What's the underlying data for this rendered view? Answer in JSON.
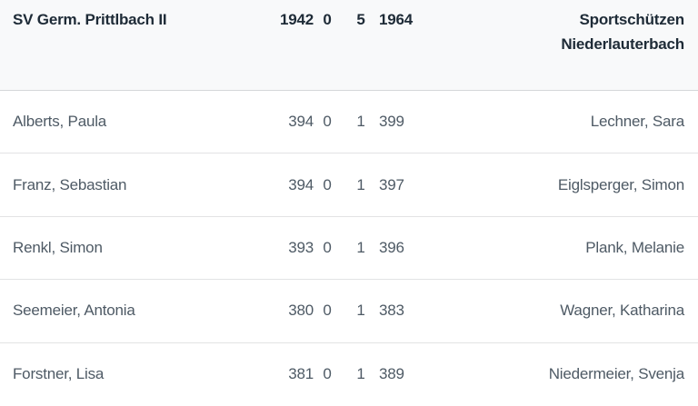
{
  "header": {
    "home_team": "SV Germ. Prittlbach II",
    "home_total": "1942",
    "home_match_points": "0",
    "away_match_points": "5",
    "away_total": "1964",
    "away_team": "Sportschützen Niederlauterbach"
  },
  "rows": [
    {
      "home_shooter": "Alberts, Paula",
      "home_rings": "394",
      "home_points": "0",
      "away_points": "1",
      "away_rings": "399",
      "away_shooter": "Lechner, Sara"
    },
    {
      "home_shooter": "Franz, Sebastian",
      "home_rings": "394",
      "home_points": "0",
      "away_points": "1",
      "away_rings": "397",
      "away_shooter": "Eiglsperger, Simon"
    },
    {
      "home_shooter": "Renkl, Simon",
      "home_rings": "393",
      "home_points": "0",
      "away_points": "1",
      "away_rings": "396",
      "away_shooter": "Plank, Melanie"
    },
    {
      "home_shooter": "Seemeier, Antonia",
      "home_rings": "380",
      "home_points": "0",
      "away_points": "1",
      "away_rings": "383",
      "away_shooter": "Wagner, Katharina"
    },
    {
      "home_shooter": "Forstner, Lisa",
      "home_rings": "381",
      "home_points": "0",
      "away_points": "1",
      "away_rings": "389",
      "away_shooter": "Niedermeier, Svenja"
    }
  ],
  "colors": {
    "header_background": "#f8f9fa",
    "header_text": "#1e2b37",
    "row_text": "#4e5a65",
    "divider": "#e2e3e4"
  }
}
